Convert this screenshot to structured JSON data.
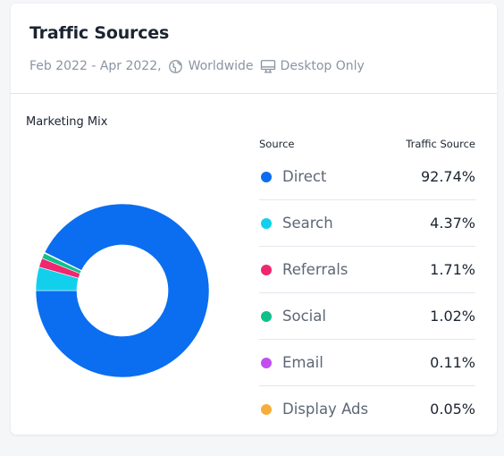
{
  "card": {
    "title": "Traffic Sources",
    "date_range": "Feb 2022 - Apr 2022,",
    "region": "Worldwide",
    "device": "Desktop Only",
    "icons": {
      "region": "globe-icon",
      "device": "monitor-icon"
    }
  },
  "chart_data": {
    "type": "pie",
    "title": "Marketing Mix",
    "hole": "donut",
    "col_source": "Source",
    "col_value": "Traffic Source",
    "series": [
      {
        "name": "Direct",
        "value": 92.74,
        "label": "92.74%",
        "color": "#0b6ef0"
      },
      {
        "name": "Search",
        "value": 4.37,
        "label": "4.37%",
        "color": "#12d0ec"
      },
      {
        "name": "Referrals",
        "value": 1.71,
        "label": "1.71%",
        "color": "#f0266e"
      },
      {
        "name": "Social",
        "value": 1.02,
        "label": "1.02%",
        "color": "#10c08a"
      },
      {
        "name": "Email",
        "value": 0.11,
        "label": "0.11%",
        "color": "#c24ef0"
      },
      {
        "name": "Display Ads",
        "value": 0.05,
        "label": "0.05%",
        "color": "#f5ae3d"
      }
    ]
  }
}
